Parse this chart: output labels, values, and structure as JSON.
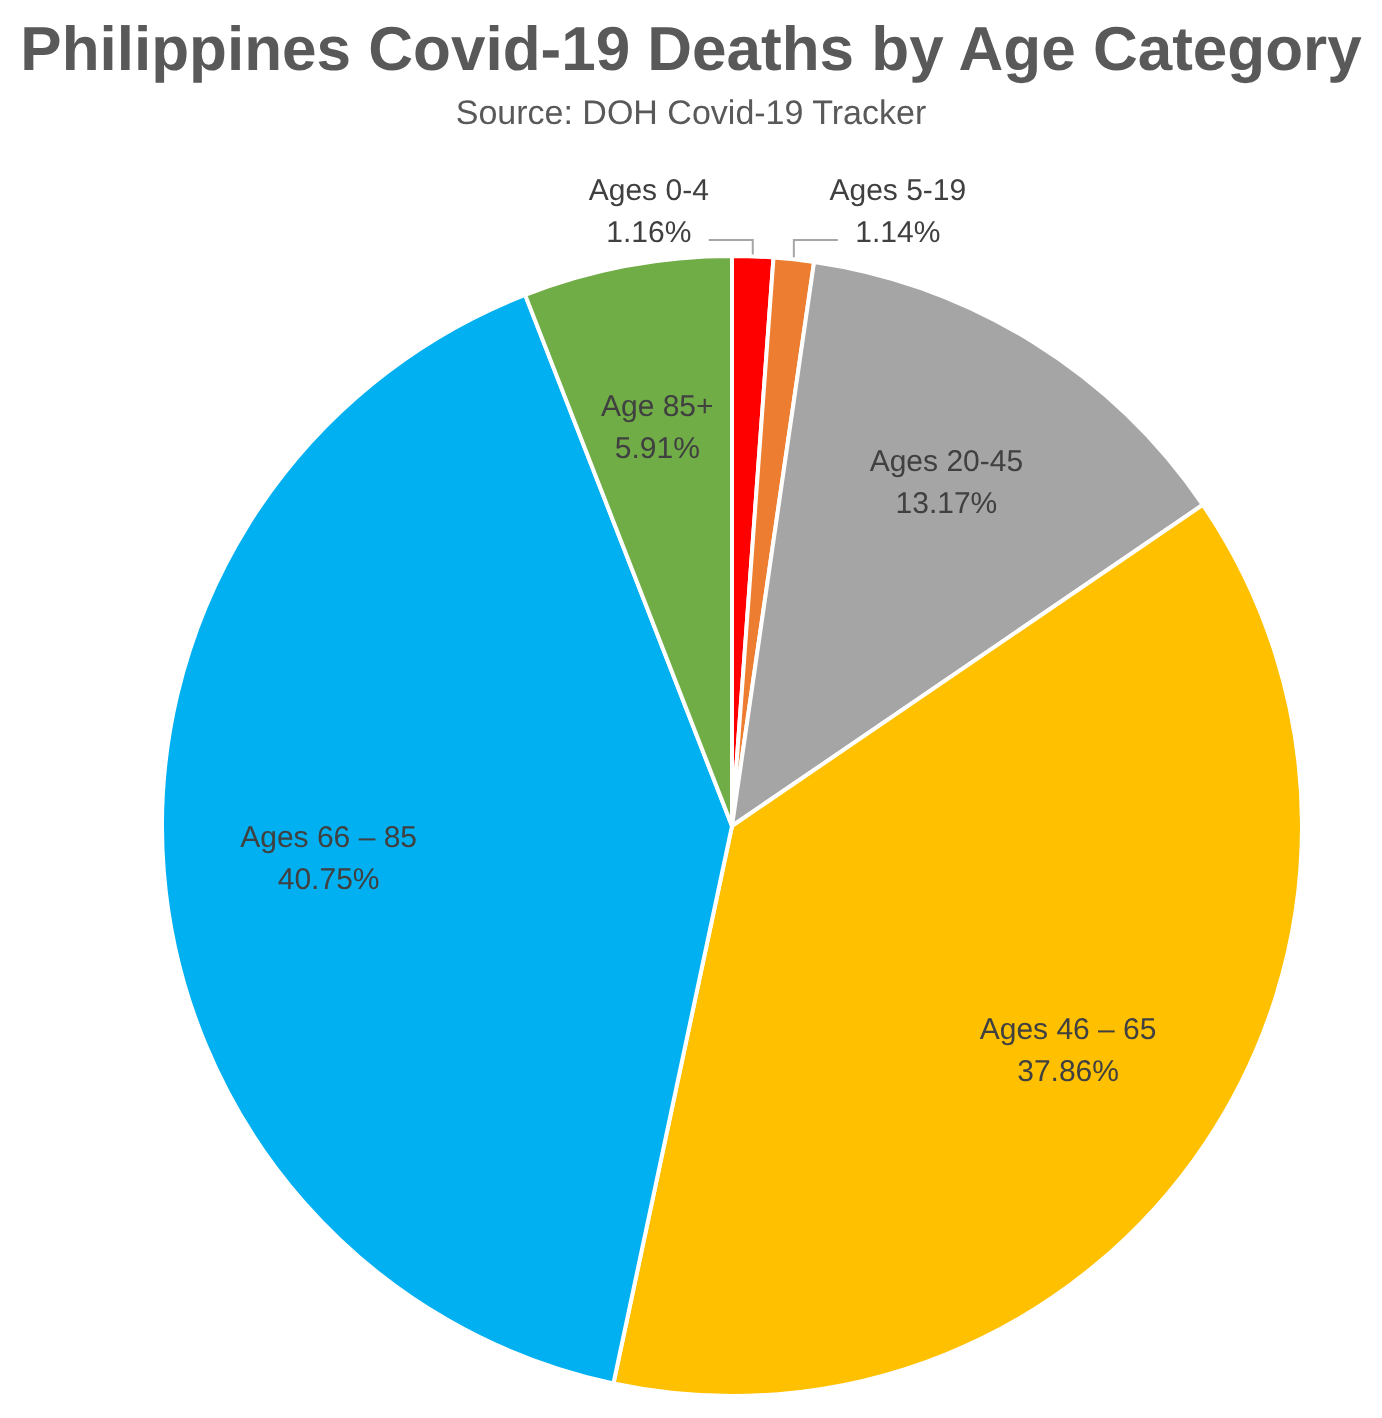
{
  "chart_data": {
    "type": "pie",
    "title": "Philippines Covid-19 Deaths by Age Category",
    "subtitle": "Source: DOH Covid-19 Tracker",
    "categories": [
      "Ages 0-4",
      "Ages 5-19",
      "Ages 20-45",
      "Ages 46 – 65",
      "Ages 66 – 85",
      "Age 85+"
    ],
    "values": [
      1.16,
      1.14,
      13.17,
      37.86,
      40.75,
      5.91
    ],
    "value_labels": [
      "1.16%",
      "1.14%",
      "13.17%",
      "37.86%",
      "40.75%",
      "5.91%"
    ],
    "colors": [
      "#ff0000",
      "#ed7d31",
      "#a5a5a5",
      "#ffc000",
      "#00b0f0",
      "#70ad47"
    ],
    "legend": false
  }
}
